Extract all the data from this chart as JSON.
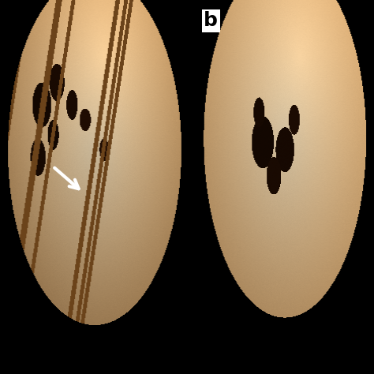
{
  "background_color": "#000000",
  "label_b_text": "b",
  "label_b_fontsize": 18,
  "label_b_fontweight": "bold",
  "figsize": [
    4.74,
    4.74
  ],
  "dpi": 100,
  "cream": [
    0.92,
    0.84,
    0.7
  ],
  "orange": [
    0.78,
    0.5,
    0.2
  ],
  "dark": [
    0.25,
    0.1,
    0.02
  ],
  "mid": [
    0.6,
    0.38,
    0.15
  ]
}
